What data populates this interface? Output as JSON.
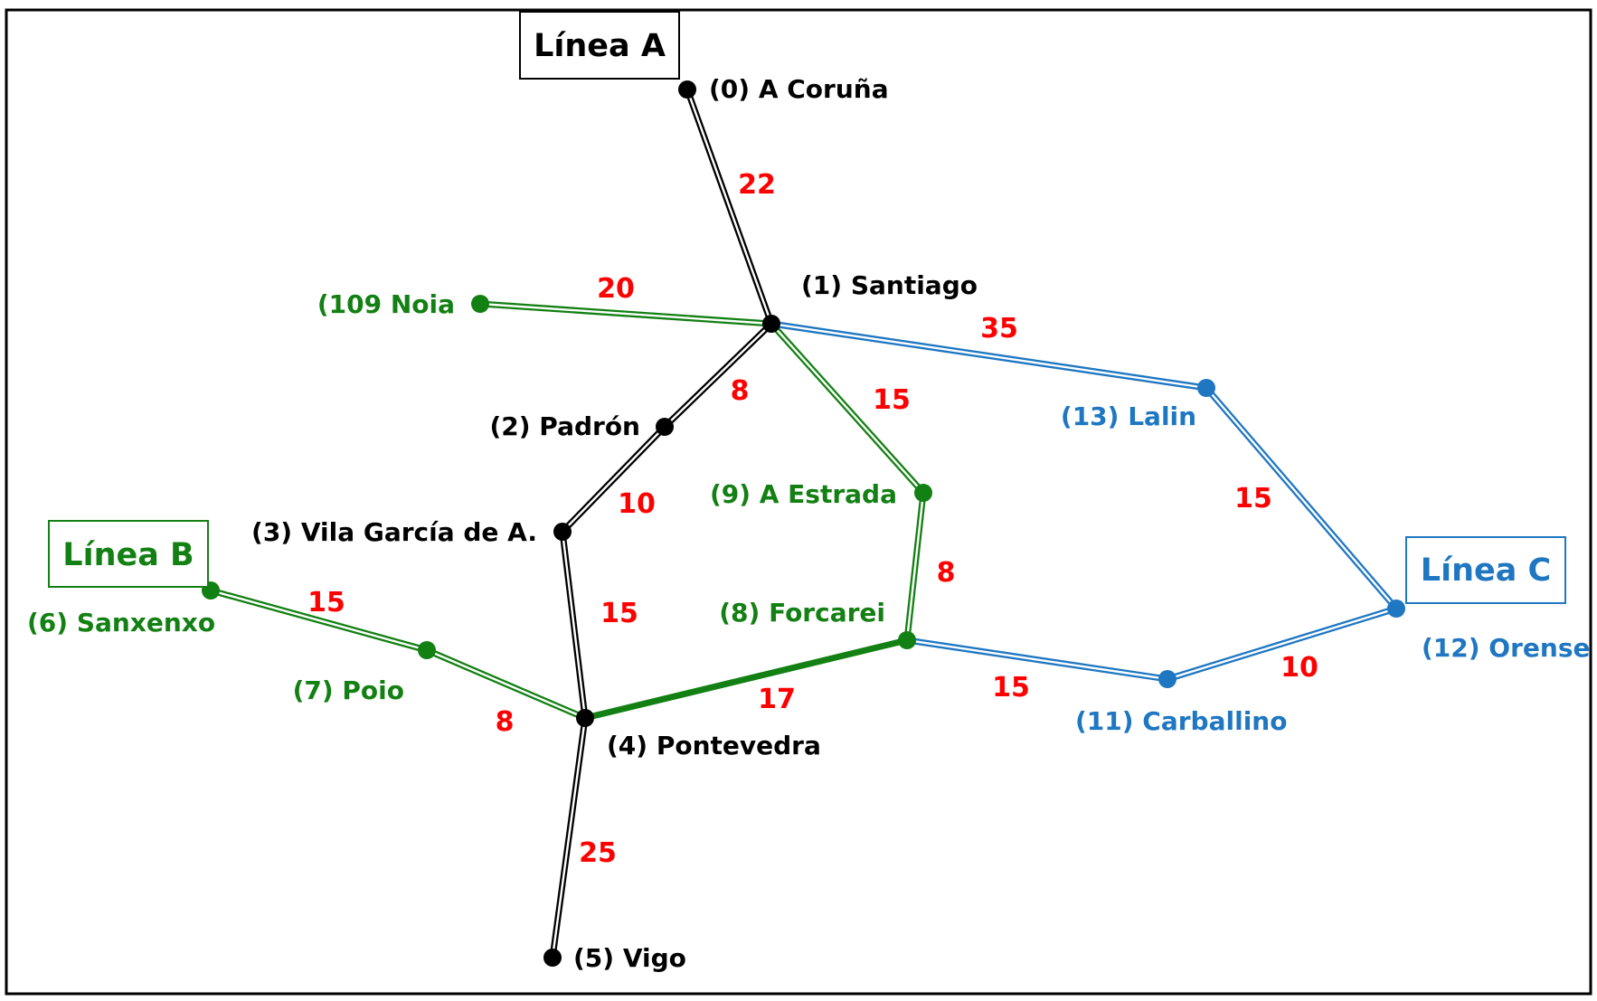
{
  "colors": {
    "line_a": "#000000",
    "line_b": "#138013",
    "line_c": "#1f77c2",
    "weight": "#ff0000",
    "border": "#000000"
  },
  "lines": [
    {
      "id": "a",
      "title": "Línea A",
      "color": "#000000"
    },
    {
      "id": "b",
      "title": "Línea B",
      "color": "#138013"
    },
    {
      "id": "c",
      "title": "Línea C",
      "color": "#1f77c2"
    }
  ],
  "stations": [
    {
      "id": "s0",
      "label": "(0) A Coruña",
      "color": "#000000"
    },
    {
      "id": "s1",
      "label": "(1) Santiago",
      "color": "#000000"
    },
    {
      "id": "s2",
      "label": "(2) Padrón",
      "color": "#000000"
    },
    {
      "id": "s3",
      "label": "(3) Vila García de A.",
      "color": "#000000"
    },
    {
      "id": "s4",
      "label": "(4) Pontevedra",
      "color": "#000000"
    },
    {
      "id": "s5",
      "label": "(5) Vigo",
      "color": "#000000"
    },
    {
      "id": "s6",
      "label": "(6) Sanxenxo",
      "color": "#138013"
    },
    {
      "id": "s7",
      "label": "(7) Poio",
      "color": "#138013"
    },
    {
      "id": "s8",
      "label": "(8) Forcarei",
      "color": "#138013"
    },
    {
      "id": "s9",
      "label": "(9) A Estrada",
      "color": "#138013"
    },
    {
      "id": "s10",
      "label": "(109 Noia",
      "color": "#138013"
    },
    {
      "id": "s11",
      "label": "(11) Carballino",
      "color": "#1f77c2"
    },
    {
      "id": "s12",
      "label": "(12) Orense",
      "color": "#1f77c2"
    },
    {
      "id": "s13",
      "label": "(13) Lalin",
      "color": "#1f77c2"
    }
  ],
  "edges": [
    {
      "from": "s0",
      "to": "s1",
      "weight": "22",
      "line": "a",
      "style": "double"
    },
    {
      "from": "s1",
      "to": "s2",
      "weight": "8",
      "line": "a",
      "style": "double"
    },
    {
      "from": "s2",
      "to": "s3",
      "weight": "10",
      "line": "a",
      "style": "double"
    },
    {
      "from": "s3",
      "to": "s4",
      "weight": "15",
      "line": "a",
      "style": "double"
    },
    {
      "from": "s4",
      "to": "s5",
      "weight": "25",
      "line": "a",
      "style": "double"
    },
    {
      "from": "s10",
      "to": "s1",
      "weight": "20",
      "line": "b",
      "style": "double"
    },
    {
      "from": "s1",
      "to": "s9",
      "weight": "15",
      "line": "b",
      "style": "double"
    },
    {
      "from": "s9",
      "to": "s8",
      "weight": "8",
      "line": "b",
      "style": "double"
    },
    {
      "from": "s8",
      "to": "s4",
      "weight": "17",
      "line": "b",
      "style": "solid"
    },
    {
      "from": "s6",
      "to": "s7",
      "weight": "15",
      "line": "b",
      "style": "double"
    },
    {
      "from": "s7",
      "to": "s4",
      "weight": "8",
      "line": "b",
      "style": "double"
    },
    {
      "from": "s1",
      "to": "s13",
      "weight": "35",
      "line": "c",
      "style": "double"
    },
    {
      "from": "s13",
      "to": "s12",
      "weight": "15",
      "line": "c",
      "style": "double"
    },
    {
      "from": "s12",
      "to": "s11",
      "weight": "10",
      "line": "c",
      "style": "double"
    },
    {
      "from": "s11",
      "to": "s8",
      "weight": "15",
      "line": "c",
      "style": "double"
    }
  ]
}
